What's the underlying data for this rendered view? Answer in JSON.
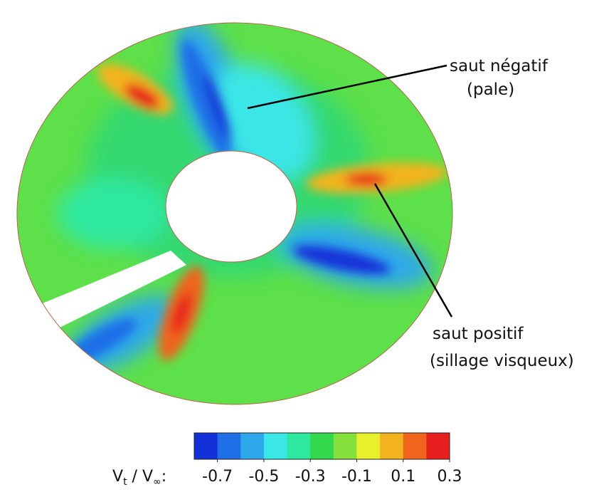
{
  "chart_data": {
    "type": "contour",
    "annotations": [
      {
        "lines": [
          "saut négatif",
          "(pale)"
        ]
      },
      {
        "lines": [
          "saut positif",
          "(sillage visqueux)"
        ]
      }
    ],
    "colorbar_label": [
      "V",
      "t",
      " / V",
      "∞",
      ":"
    ],
    "clim": [
      -0.8,
      0.3
    ],
    "ticks": [
      -0.7,
      -0.5,
      -0.3,
      -0.1,
      0.1,
      0.3
    ],
    "colors": [
      "#1230d8",
      "#1f6ee6",
      "#2ea8ea",
      "#3ae6e6",
      "#2fe8a0",
      "#34d84c",
      "#86e03c",
      "#e6f02c",
      "#f2b31e",
      "#f0641e",
      "#e61e1e"
    ]
  }
}
